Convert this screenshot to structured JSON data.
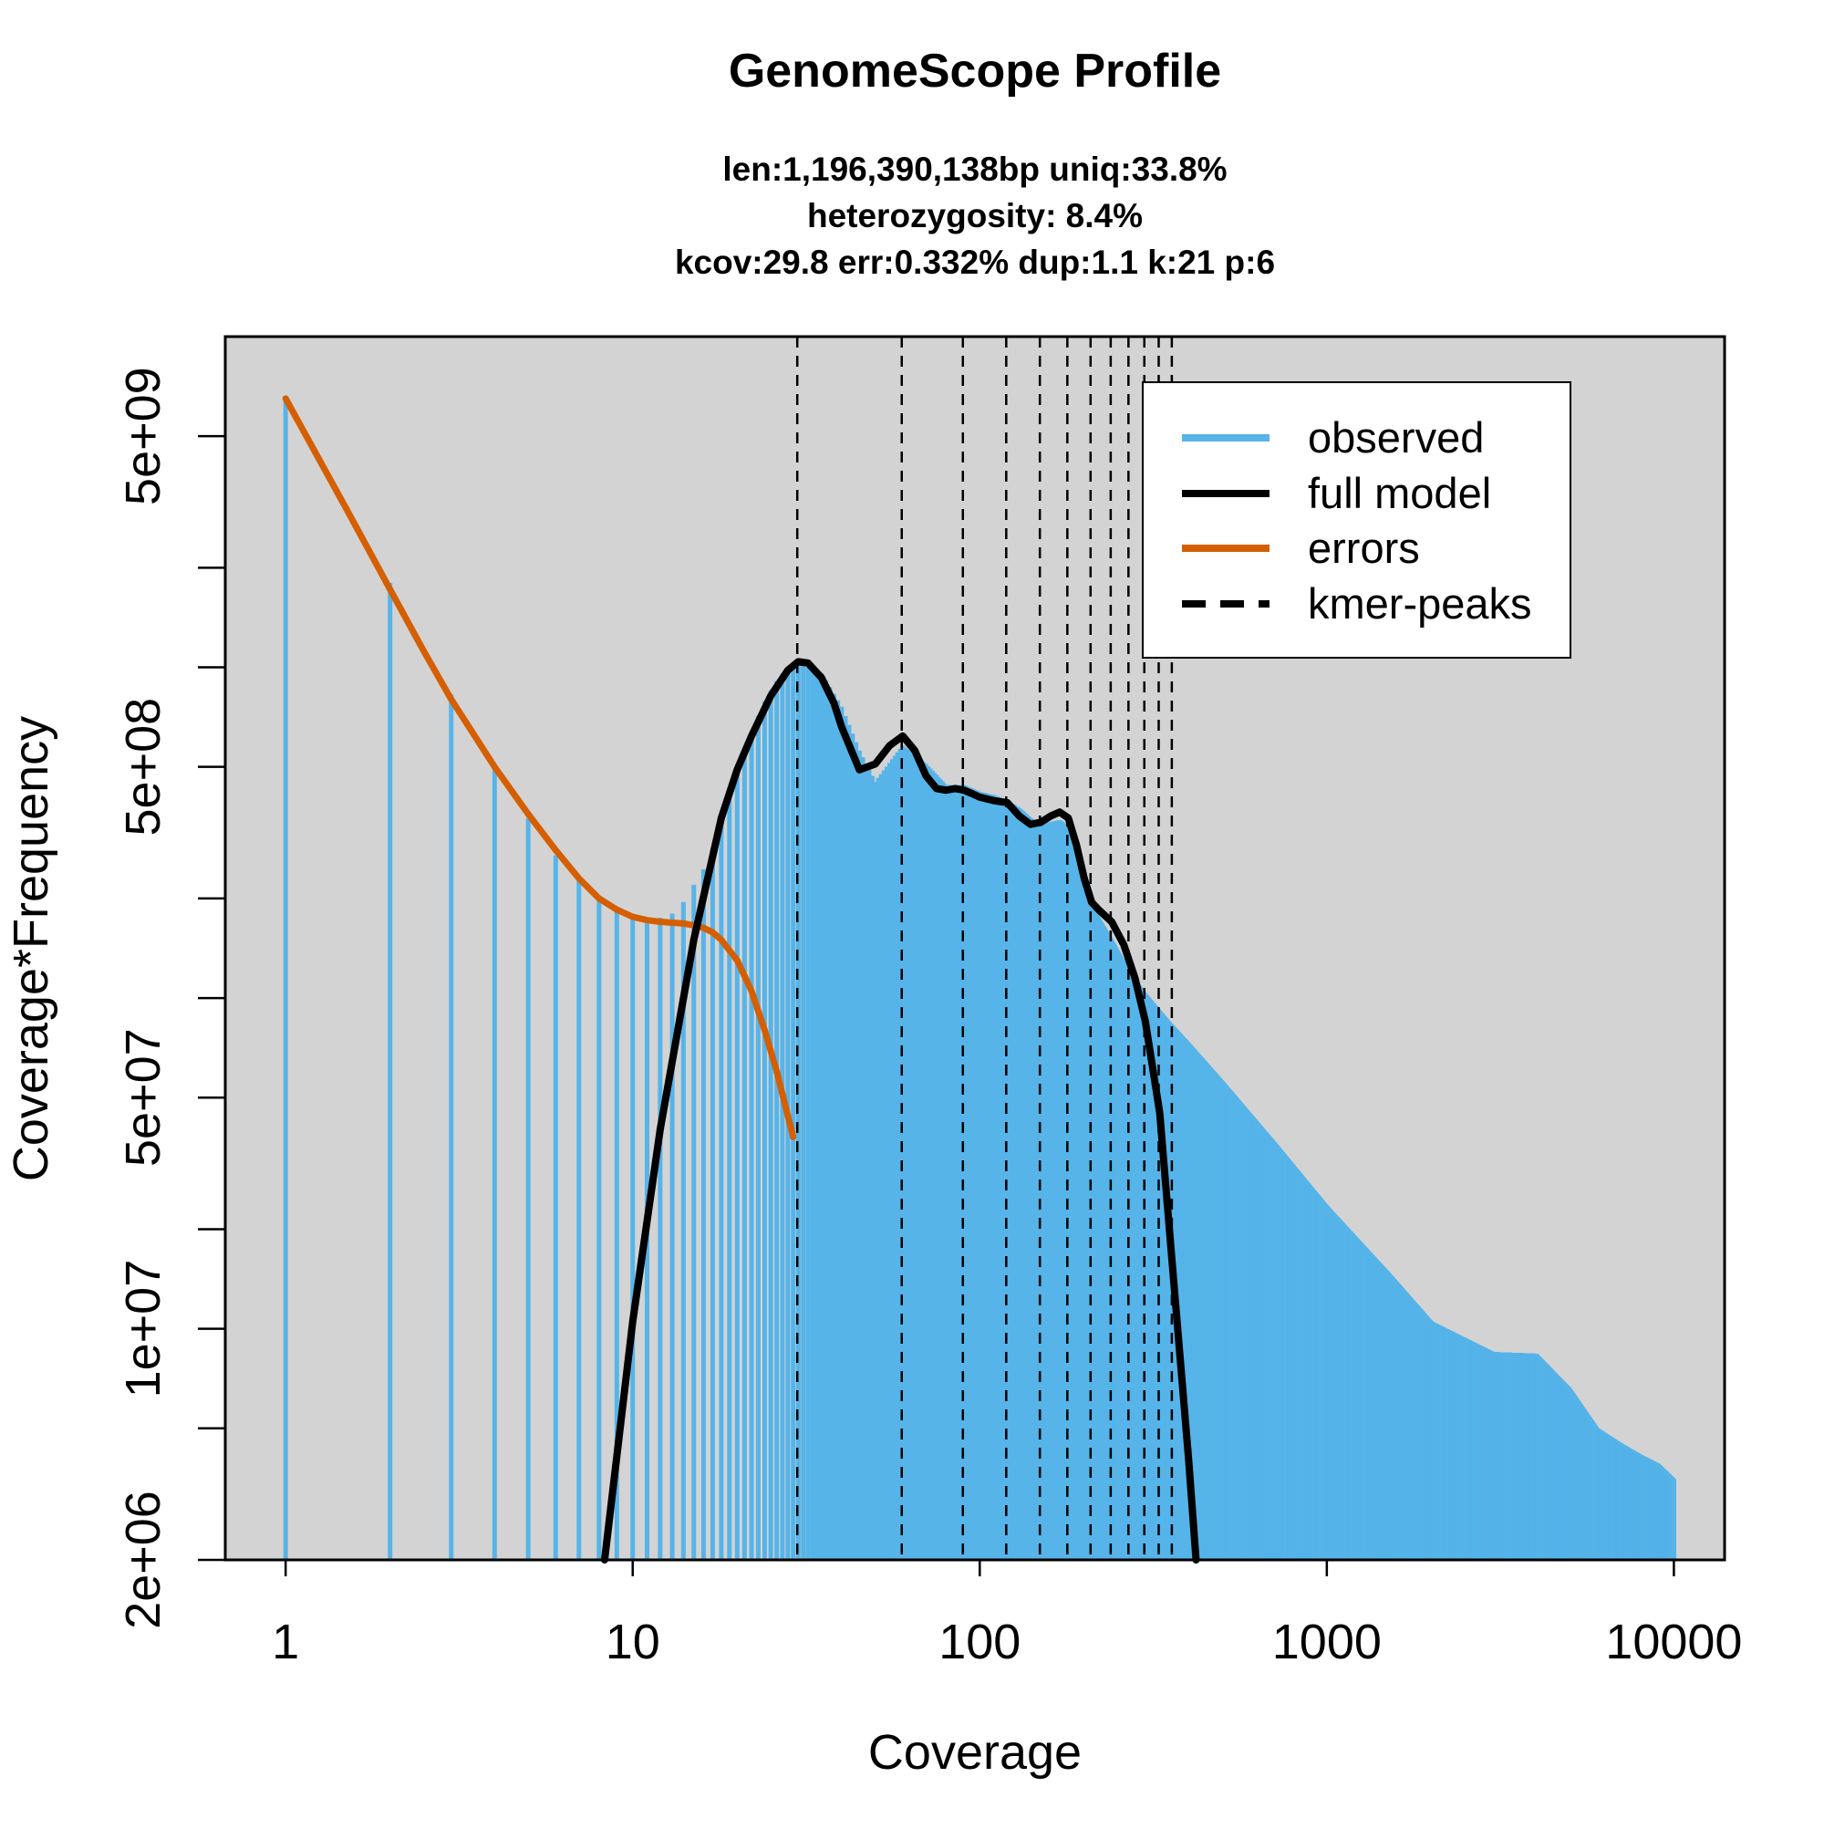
{
  "chart_data": {
    "type": "area",
    "title": "GenomeScope Profile",
    "subtitle_lines": [
      "len:1,196,390,138bp uniq:33.8%",
      "heterozygosity: 8.4%",
      "kcov:29.8 err:0.332%  dup:1.1  k:21 p:6"
    ],
    "xlabel": "Coverage",
    "ylabel": "Coverage*Frequency",
    "x_scale": "log",
    "y_scale": "log",
    "xlim": [
      0.67,
      14000
    ],
    "ylim": [
      2000000,
      10000000000
    ],
    "x_ticks": [
      1,
      10,
      100,
      1000,
      10000
    ],
    "x_tick_labels": [
      "1",
      "10",
      "100",
      "1000",
      "10000"
    ],
    "y_major_ticks": [
      2000000,
      10000000,
      50000000,
      500000000,
      5000000000
    ],
    "y_major_tick_labels": [
      "2e+06",
      "1e+07",
      "5e+07",
      "5e+08",
      "5e+09"
    ],
    "y_minor_ticks": [
      5000000,
      20000000,
      100000000,
      200000000,
      1000000000,
      2000000000
    ],
    "background_color": "#d3d3d3",
    "colors": {
      "observed": "#56b4e9",
      "full_model": "#000000",
      "errors": "#d55e00",
      "kmer_peaks": "#000000"
    },
    "legend": {
      "position": "top-right",
      "entries": [
        "observed",
        "full model",
        "errors",
        "kmer-peaks"
      ]
    },
    "observed_envelope": {
      "x": [
        1,
        2,
        3,
        4,
        5,
        6,
        7,
        8,
        9,
        10,
        11,
        12,
        13,
        14,
        15,
        16,
        17,
        18,
        19,
        20,
        22,
        24,
        26,
        28,
        30,
        35,
        40,
        45,
        50,
        60,
        70,
        80,
        90,
        100,
        110,
        120,
        130,
        140,
        150,
        160,
        170,
        180,
        190,
        200,
        220,
        240,
        270,
        300,
        350,
        400,
        500,
        700,
        1000,
        1500,
        2000,
        3000,
        4000,
        5000,
        6000,
        7000,
        8000,
        9000,
        10000
      ],
      "y": [
        6500000000,
        1800000000,
        830000000,
        490000000,
        350000000,
        270000000,
        230000000,
        200000000,
        185000000,
        175000000,
        170000000,
        175000000,
        180000000,
        195000000,
        220000000,
        245000000,
        285000000,
        340000000,
        400000000,
        480000000,
        640000000,
        790000000,
        910000000,
        1000000000,
        1030000000,
        960000000,
        760000000,
        560000000,
        450000000,
        580000000,
        510000000,
        440000000,
        440000000,
        420000000,
        410000000,
        395000000,
        375000000,
        350000000,
        335000000,
        340000000,
        345000000,
        330000000,
        290000000,
        240000000,
        175000000,
        150000000,
        120000000,
        103000000,
        85000000,
        73000000,
        56000000,
        37000000,
        23500000,
        14800000,
        10500000,
        8500000,
        8400000,
        6600000,
        5000000,
        4500000,
        4150000,
        3900000,
        3500000
      ]
    },
    "full_model": {
      "x": [
        8.3,
        10,
        12,
        15,
        18,
        20,
        22,
        25,
        28,
        30,
        32,
        35,
        38,
        40,
        45,
        50,
        55,
        60,
        65,
        70,
        75,
        80,
        85,
        90,
        95,
        100,
        110,
        120,
        130,
        140,
        150,
        160,
        170,
        180,
        190,
        200,
        210,
        220,
        240,
        260,
        280,
        300,
        330,
        360,
        400,
        420
      ],
      "y": [
        2000000,
        10500000,
        40000000,
        150000000,
        350000000,
        490000000,
        620000000,
        820000000,
        980000000,
        1040000000,
        1030000000,
        930000000,
        780000000,
        660000000,
        490000000,
        510000000,
        580000000,
        620000000,
        560000000,
        470000000,
        430000000,
        425000000,
        430000000,
        425000000,
        415000000,
        405000000,
        395000000,
        390000000,
        355000000,
        335000000,
        340000000,
        355000000,
        365000000,
        350000000,
        290000000,
        230000000,
        195000000,
        185000000,
        170000000,
        145000000,
        115000000,
        85000000,
        45000000,
        15000000,
        4000000,
        2000000
      ]
    },
    "errors": {
      "x": [
        1,
        1.5,
        2,
        2.5,
        3,
        4,
        5,
        6,
        7,
        8,
        9,
        10,
        11,
        12,
        13,
        14,
        15,
        16,
        17,
        18,
        20,
        22,
        24,
        26,
        28,
        29
      ],
      "y": [
        6500000000,
        3000000000,
        1720000000,
        1120000000,
        800000000,
        500000000,
        360000000,
        280000000,
        230000000,
        200000000,
        185000000,
        176000000,
        172000000,
        170000000,
        169000000,
        168000000,
        166000000,
        163000000,
        158000000,
        150000000,
        130000000,
        105000000,
        80000000,
        60000000,
        44000000,
        38000000
      ]
    },
    "kmer_peaks": [
      29.8,
      59.6,
      89.4,
      119.2,
      149,
      178.8,
      208.6,
      238.4,
      268.2,
      298,
      327.8,
      357.6
    ]
  }
}
